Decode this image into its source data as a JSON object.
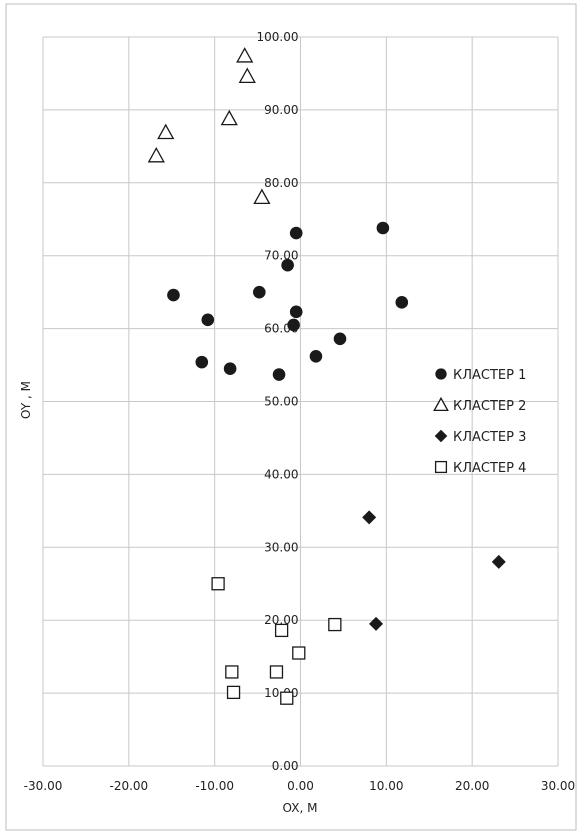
{
  "chart_data": {
    "type": "scatter",
    "xlabel": "OX, M",
    "ylabel": "OY , M",
    "xlim": [
      -30,
      30
    ],
    "ylim": [
      0,
      100
    ],
    "x_ticks": [
      "-30.00",
      "-20.00",
      "-10.00",
      "0.00",
      "10.00",
      "20.00",
      "30.00"
    ],
    "y_ticks": [
      "0.00",
      "10.00",
      "20.00",
      "30.00",
      "40.00",
      "50.00",
      "60.00",
      "70.00",
      "80.00",
      "90.00",
      "100.00"
    ],
    "grid": true,
    "legend_position": "right",
    "series": [
      {
        "name": "КЛАСТЕР 1",
        "marker": "circle-filled",
        "points": [
          {
            "x": -14.8,
            "y": 64.6
          },
          {
            "x": -10.8,
            "y": 61.2
          },
          {
            "x": -11.5,
            "y": 55.4
          },
          {
            "x": -8.2,
            "y": 54.5
          },
          {
            "x": -4.8,
            "y": 65.0
          },
          {
            "x": -2.5,
            "y": 53.7
          },
          {
            "x": -1.5,
            "y": 68.7
          },
          {
            "x": -0.8,
            "y": 60.5
          },
          {
            "x": -0.5,
            "y": 62.3
          },
          {
            "x": -0.5,
            "y": 73.1
          },
          {
            "x": 1.8,
            "y": 56.2
          },
          {
            "x": 4.6,
            "y": 58.6
          },
          {
            "x": 9.6,
            "y": 73.8
          },
          {
            "x": 11.8,
            "y": 63.6
          }
        ]
      },
      {
        "name": "КЛАСТЕР 2",
        "marker": "triangle-open",
        "points": [
          {
            "x": -16.8,
            "y": 83.7
          },
          {
            "x": -15.7,
            "y": 86.9
          },
          {
            "x": -8.3,
            "y": 88.8
          },
          {
            "x": -6.2,
            "y": 94.6
          },
          {
            "x": -6.5,
            "y": 97.4
          },
          {
            "x": -4.5,
            "y": 78.0
          }
        ]
      },
      {
        "name": "КЛАСТЕР 3",
        "marker": "diamond-filled",
        "points": [
          {
            "x": 8.0,
            "y": 34.1
          },
          {
            "x": 8.8,
            "y": 19.5
          },
          {
            "x": 23.1,
            "y": 28.0
          }
        ]
      },
      {
        "name": "КЛАСТЕР 4",
        "marker": "square-open",
        "points": [
          {
            "x": -9.6,
            "y": 25.0
          },
          {
            "x": -8.0,
            "y": 12.9
          },
          {
            "x": -7.8,
            "y": 10.1
          },
          {
            "x": -2.8,
            "y": 12.9
          },
          {
            "x": -2.2,
            "y": 18.6
          },
          {
            "x": -1.6,
            "y": 9.3
          },
          {
            "x": -0.2,
            "y": 15.5
          },
          {
            "x": 4.0,
            "y": 19.4
          }
        ]
      }
    ]
  },
  "colors": {
    "marker": "#1a1a1a",
    "grid": "#c8c8c8",
    "frame": "#bdbdbd"
  }
}
